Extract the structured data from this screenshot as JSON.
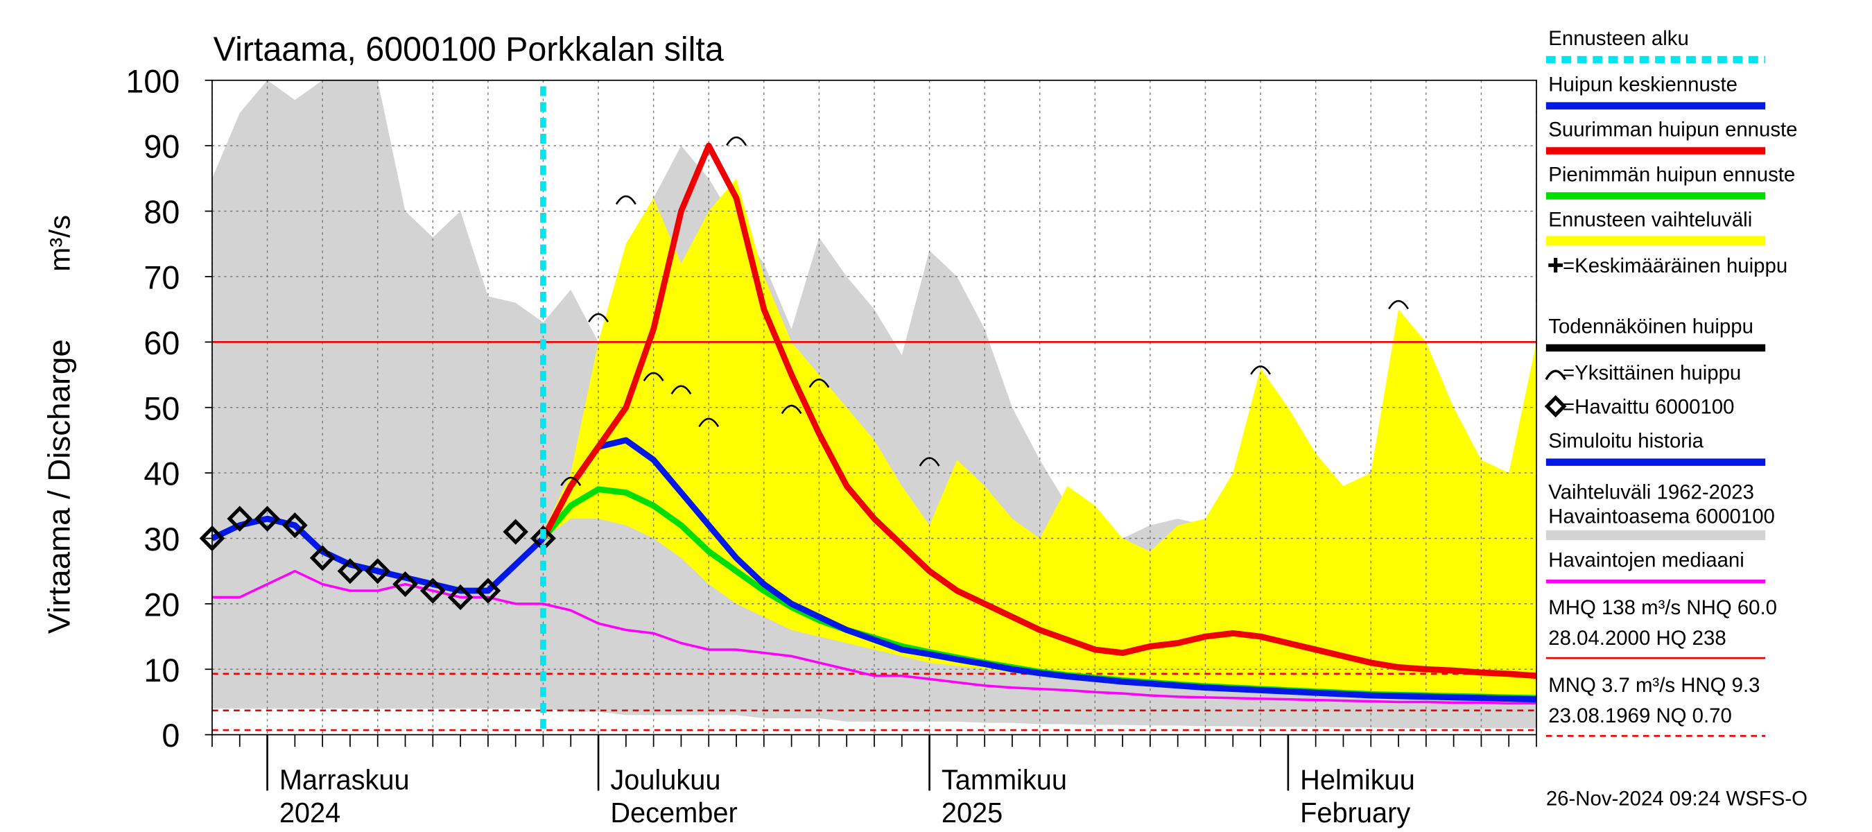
{
  "chart_data": {
    "type": "line",
    "title": "Virtaama, 6000100 Porkkalan silta",
    "y_label": "Virtaama / Discharge",
    "y_unit": "m³/s",
    "footer": "26-Nov-2024 09:24 WSFS-O",
    "ylim": [
      0,
      100
    ],
    "yticks": [
      0,
      10,
      20,
      30,
      40,
      50,
      60,
      70,
      80,
      90,
      100
    ],
    "grid": true,
    "categories": [
      null,
      null,
      [
        "Marraskuu",
        "2024"
      ],
      null,
      null,
      null,
      null,
      null,
      null,
      null,
      null,
      null,
      null,
      null,
      [
        "Joulukuu",
        "December"
      ],
      null,
      null,
      null,
      null,
      null,
      null,
      null,
      null,
      null,
      null,
      null,
      [
        "Tammikuu",
        "2025"
      ],
      null,
      null,
      null,
      null,
      null,
      null,
      null,
      null,
      null,
      null,
      null,
      null,
      [
        "Helmikuu",
        "February"
      ],
      null,
      null,
      null,
      null,
      null,
      null,
      null,
      null,
      null
    ],
    "series": [
      {
        "kind": "vline",
        "name": "Ennusteen alku",
        "color": "#00e5ee",
        "at": 12
      },
      {
        "kind": "line",
        "name": "Huipun keskiennuste",
        "color": "#0018e6",
        "values": [
          null,
          null,
          null,
          null,
          null,
          null,
          null,
          null,
          null,
          null,
          null,
          null,
          30,
          38,
          44,
          45,
          42,
          37,
          32,
          27,
          23,
          20,
          18,
          16,
          14.5,
          13,
          12.3,
          11.5,
          10.8,
          10,
          9.4,
          8.9,
          8.5,
          8.1,
          7.8,
          7.5,
          7.2,
          7,
          6.8,
          6.6,
          6.4,
          6.2,
          6,
          5.9,
          5.8,
          5.7,
          5.6,
          5.5,
          5.4
        ]
      },
      {
        "kind": "line",
        "name": "Suurimman huipun ennuste",
        "color": "#ee0000",
        "values": [
          null,
          null,
          null,
          null,
          null,
          null,
          null,
          null,
          null,
          null,
          null,
          null,
          30,
          38,
          44,
          50,
          62,
          80,
          90,
          82,
          65,
          55,
          46,
          38,
          33,
          29,
          25,
          22,
          20,
          18,
          16,
          14.5,
          13,
          12.5,
          13.5,
          14,
          15,
          15.5,
          15,
          14,
          13,
          12,
          11,
          10.3,
          10,
          9.8,
          9.5,
          9.3,
          9
        ]
      },
      {
        "kind": "line",
        "name": "Pienimmän huipun ennuste",
        "color": "#00dd00",
        "values": [
          null,
          null,
          null,
          null,
          null,
          null,
          null,
          null,
          null,
          null,
          null,
          null,
          30,
          35,
          37.5,
          37,
          35,
          32,
          28,
          25,
          22,
          19.5,
          17.5,
          16,
          14.8,
          13.5,
          12.6,
          11.8,
          11,
          10.3,
          9.6,
          9.1,
          8.7,
          8.3,
          8,
          7.7,
          7.4,
          7.2,
          7,
          6.8,
          6.6,
          6.4,
          6.2,
          6.1,
          6,
          5.9,
          5.8,
          5.7,
          5.6
        ]
      },
      {
        "kind": "band",
        "name": "Ennusteen vaihteluväli",
        "color": "#ffff00",
        "upper": [
          null,
          null,
          null,
          null,
          null,
          null,
          null,
          null,
          null,
          null,
          null,
          null,
          31,
          40,
          60,
          75,
          82,
          72,
          80,
          85,
          70,
          60,
          55,
          50,
          45,
          38,
          32,
          42,
          38,
          33,
          30,
          38,
          35,
          30,
          28,
          32,
          33,
          40,
          56,
          50,
          43,
          38,
          40,
          65,
          60,
          50,
          42,
          40,
          60
        ],
        "lower": [
          null,
          null,
          null,
          null,
          null,
          null,
          null,
          null,
          null,
          null,
          null,
          null,
          30,
          33,
          33,
          32,
          30,
          27,
          23,
          20,
          18,
          16,
          15,
          14,
          13,
          12,
          11,
          10.5,
          10,
          9.5,
          9,
          8.7,
          8.4,
          8,
          7.8,
          7.5,
          7.2,
          7,
          6.8,
          6.6,
          6.4,
          6.2,
          6,
          5.8,
          5.6,
          5.5,
          5.4,
          5.3,
          5.2
        ]
      },
      {
        "kind": "mean-peak",
        "name": "=Keskimääräinen huippu",
        "color": "#000000"
      },
      {
        "kind": "likely-peak",
        "name": "Todennäköinen huippu",
        "color": "#000000"
      },
      {
        "kind": "peaks",
        "name": "=Yksittäinen huippu",
        "color": "#000000",
        "values": [
          null,
          null,
          null,
          null,
          null,
          null,
          null,
          null,
          null,
          null,
          null,
          null,
          null,
          39,
          64,
          82,
          55,
          53,
          48,
          91,
          null,
          50,
          54,
          null,
          null,
          null,
          42,
          null,
          null,
          null,
          null,
          null,
          null,
          null,
          null,
          null,
          null,
          null,
          56,
          null,
          null,
          null,
          null,
          66,
          null,
          null,
          null,
          null,
          null
        ]
      },
      {
        "kind": "scatter",
        "name": "=Havaittu 6000100",
        "color": "#000000",
        "values": [
          30,
          33,
          33,
          32,
          27,
          25,
          25,
          23,
          22,
          21,
          22,
          31,
          30,
          null,
          null,
          null,
          null,
          null,
          null,
          null,
          null,
          null,
          null,
          null,
          null,
          null,
          null,
          null,
          null,
          null,
          null,
          null,
          null,
          null,
          null,
          null,
          null,
          null,
          null,
          null,
          null,
          null,
          null,
          null,
          null,
          null,
          null,
          null,
          null
        ]
      },
      {
        "kind": "line",
        "name": "Simuloitu historia",
        "color": "#0018e6",
        "values": [
          30,
          32,
          33,
          32,
          28,
          26,
          25,
          24,
          23,
          22,
          22,
          26,
          30,
          null,
          null,
          null,
          null,
          null,
          null,
          null,
          null,
          null,
          null,
          null,
          null,
          null,
          null,
          null,
          null,
          null,
          null,
          null,
          null,
          null,
          null,
          null,
          null,
          null,
          null,
          null,
          null,
          null,
          null,
          null,
          null,
          null,
          null,
          null,
          null
        ]
      },
      {
        "kind": "band",
        "name": [
          "Vaihteluväli 1962-2023",
          " Havaintoasema 6000100"
        ],
        "color": "#d3d3d3",
        "upper": [
          85,
          95,
          100,
          97,
          100,
          100,
          100,
          80,
          76,
          80,
          67,
          66,
          63,
          68,
          60,
          75,
          82,
          90,
          85,
          78,
          72,
          62,
          76,
          70,
          65,
          58,
          74,
          70,
          62,
          50,
          42,
          35,
          33,
          30,
          32,
          33,
          32,
          27,
          25,
          22,
          22,
          21,
          20,
          22,
          23,
          24,
          30,
          38,
          42
        ],
        "lower": [
          4,
          4,
          4,
          4,
          4,
          4,
          4,
          4,
          4,
          4,
          4,
          4,
          4,
          3.5,
          3.5,
          3,
          3,
          3,
          3,
          3,
          2.5,
          2.5,
          2.5,
          2,
          2,
          2,
          2,
          2,
          1.8,
          1.8,
          1.6,
          1.6,
          1.5,
          1.5,
          1.4,
          1.4,
          1.3,
          1.3,
          1.2,
          1.2,
          1.2,
          1.1,
          1.1,
          1,
          1,
          1,
          1,
          1,
          1
        ]
      },
      {
        "kind": "line",
        "name": "Havaintojen mediaani",
        "color": "#ff00ff",
        "values": [
          21,
          21,
          23,
          25,
          23,
          22,
          22,
          23,
          22,
          21,
          21,
          20,
          20,
          19,
          17,
          16,
          15.5,
          14,
          13,
          13,
          12.5,
          12,
          11,
          10,
          9,
          9,
          8.5,
          8,
          7.5,
          7.2,
          7,
          6.8,
          6.5,
          6.3,
          6,
          5.8,
          5.7,
          5.6,
          5.5,
          5.4,
          5.3,
          5.2,
          5.1,
          5,
          5,
          4.9,
          4.9,
          4.8,
          4.8
        ]
      }
    ],
    "hlines": [
      {
        "value": 60,
        "color": "#ee0000",
        "dashed": false,
        "label": [
          "MHQ  138 m³/s NHQ 60.0",
          "28.04.2000 HQ  238"
        ]
      },
      {
        "value": 9.3,
        "color": "#ee0000",
        "dashed": true,
        "label": [
          "MNQ  3.7 m³/s HNQ  9.3",
          "23.08.1969 NQ 0.70"
        ]
      },
      {
        "value": 3.7,
        "color": "#ee0000",
        "dashed": true
      },
      {
        "value": 0.7,
        "color": "#ee0000",
        "dashed": true
      }
    ]
  }
}
